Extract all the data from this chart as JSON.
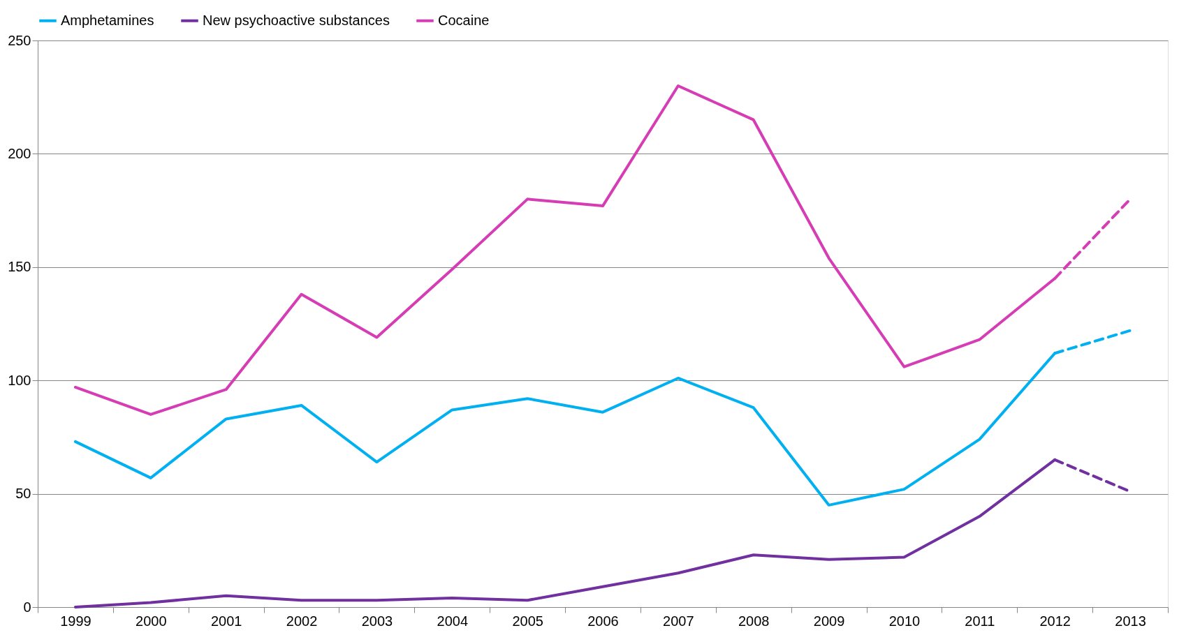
{
  "chart_data": {
    "type": "line",
    "categories": [
      "1999",
      "2000",
      "2001",
      "2002",
      "2003",
      "2004",
      "2005",
      "2006",
      "2007",
      "2008",
      "2009",
      "2010",
      "2011",
      "2012",
      "2013"
    ],
    "series": [
      {
        "name": "Amphetamines",
        "color": "#00b0f0",
        "values": [
          73,
          57,
          83,
          89,
          64,
          87,
          92,
          86,
          101,
          88,
          45,
          52,
          74,
          112,
          null
        ]
      },
      {
        "name": "New psychoactive substances",
        "color": "#7030a0",
        "values": [
          0,
          2,
          5,
          3,
          3,
          4,
          3,
          9,
          15,
          23,
          21,
          22,
          40,
          65,
          null
        ]
      },
      {
        "name": "Cocaine",
        "color": "#d63cb4",
        "values": [
          97,
          85,
          96,
          138,
          119,
          149,
          180,
          177,
          230,
          215,
          154,
          106,
          118,
          145,
          null
        ]
      },
      {
        "color": "#00b0f0",
        "line_style": "dashed",
        "values": [
          null,
          null,
          null,
          null,
          null,
          null,
          null,
          null,
          null,
          null,
          null,
          null,
          null,
          112,
          122
        ]
      },
      {
        "color": "#7030a0",
        "line_style": "dashed",
        "values": [
          null,
          null,
          null,
          null,
          null,
          null,
          null,
          null,
          null,
          null,
          null,
          null,
          null,
          65,
          51
        ]
      },
      {
        "color": "#d63cb4",
        "line_style": "dashed",
        "values": [
          null,
          null,
          null,
          null,
          null,
          null,
          null,
          null,
          null,
          null,
          null,
          null,
          null,
          145,
          180
        ]
      }
    ],
    "ylim": [
      0,
      250
    ],
    "yticks": [
      0,
      50,
      100,
      150,
      200,
      250
    ],
    "grid": "y",
    "legend": "top",
    "marker": "none",
    "line_style": "solid"
  }
}
